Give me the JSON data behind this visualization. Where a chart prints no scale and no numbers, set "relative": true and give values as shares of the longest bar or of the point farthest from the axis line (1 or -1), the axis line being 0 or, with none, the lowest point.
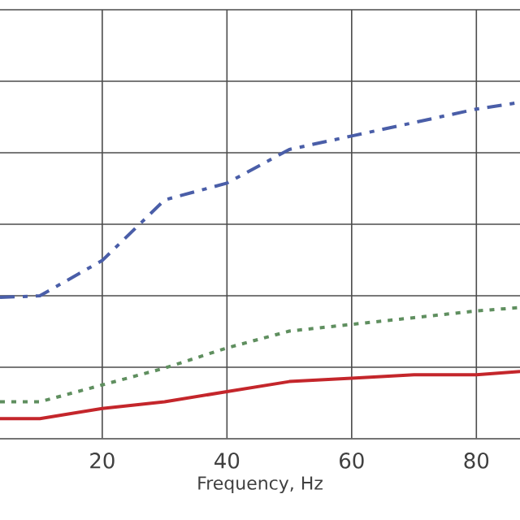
{
  "chart_data": {
    "type": "line",
    "xlabel": "Frequency, Hz",
    "relative": true,
    "grid": true,
    "tick_labels": "x",
    "marker": "none",
    "x": [
      3.6,
      10,
      20,
      30,
      40,
      50,
      60,
      70,
      80,
      87
    ],
    "xlim": [
      3.6,
      87
    ],
    "xticks": [
      20,
      40,
      60,
      80
    ],
    "series": [
      {
        "color": "#4a5ea8",
        "line_style": "dashdot",
        "values": [
          0.42,
          0.425,
          0.53,
          0.71,
          0.76,
          0.86,
          0.9,
          0.94,
          0.98,
          1.0
        ]
      },
      {
        "color": "#5f8f5f",
        "line_style": "dotted",
        "values": [
          0.11,
          0.11,
          0.16,
          0.21,
          0.27,
          0.32,
          0.34,
          0.36,
          0.38,
          0.39
        ]
      },
      {
        "color": "#c4262b",
        "line_style": "solid",
        "values": [
          0.06,
          0.06,
          0.09,
          0.11,
          0.14,
          0.17,
          0.18,
          0.19,
          0.19,
          0.2
        ]
      }
    ]
  }
}
